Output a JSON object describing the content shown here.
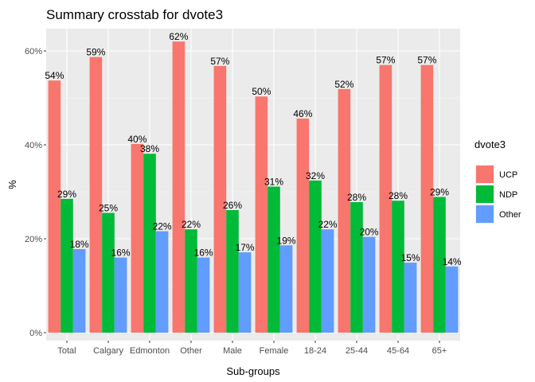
{
  "chart_data": {
    "type": "bar",
    "title": "Summary crosstab for dvote3",
    "xlabel": "Sub-groups",
    "ylabel": "%",
    "categories": [
      "Total",
      "Calgary",
      "Edmonton",
      "Other",
      "Male",
      "Female",
      "18-24",
      "25-44",
      "45-64",
      "65+"
    ],
    "series": [
      {
        "name": "UCP",
        "color": "#F8766D",
        "values": [
          53.7,
          58.7,
          40.2,
          62.0,
          56.8,
          50.3,
          45.6,
          51.9,
          57.0,
          57.0
        ],
        "labels": [
          "54%",
          "59%",
          "40%",
          "62%",
          "57%",
          "50%",
          "46%",
          "52%",
          "57%",
          "57%"
        ]
      },
      {
        "name": "NDP",
        "color": "#00BA38",
        "values": [
          28.5,
          25.5,
          38.1,
          22.0,
          26.1,
          31.1,
          32.4,
          27.8,
          28.1,
          28.9
        ],
        "labels": [
          "29%",
          "25%",
          "38%",
          "22%",
          "26%",
          "31%",
          "32%",
          "28%",
          "28%",
          "29%"
        ]
      },
      {
        "name": "Other",
        "color": "#619CFF",
        "values": [
          17.8,
          16.0,
          21.6,
          16.0,
          17.1,
          18.6,
          22.0,
          20.4,
          14.9,
          14.1
        ],
        "labels": [
          "18%",
          "16%",
          "22%",
          "16%",
          "17%",
          "19%",
          "22%",
          "20%",
          "15%",
          "14%"
        ]
      }
    ],
    "ylim": [
      0,
      65
    ],
    "y_ticks": [
      0,
      20,
      40,
      60
    ],
    "y_tick_labels": [
      "0%",
      "20%",
      "40%",
      "60%"
    ],
    "grid": true,
    "legend": {
      "title": "dvote3",
      "position": "right"
    }
  }
}
